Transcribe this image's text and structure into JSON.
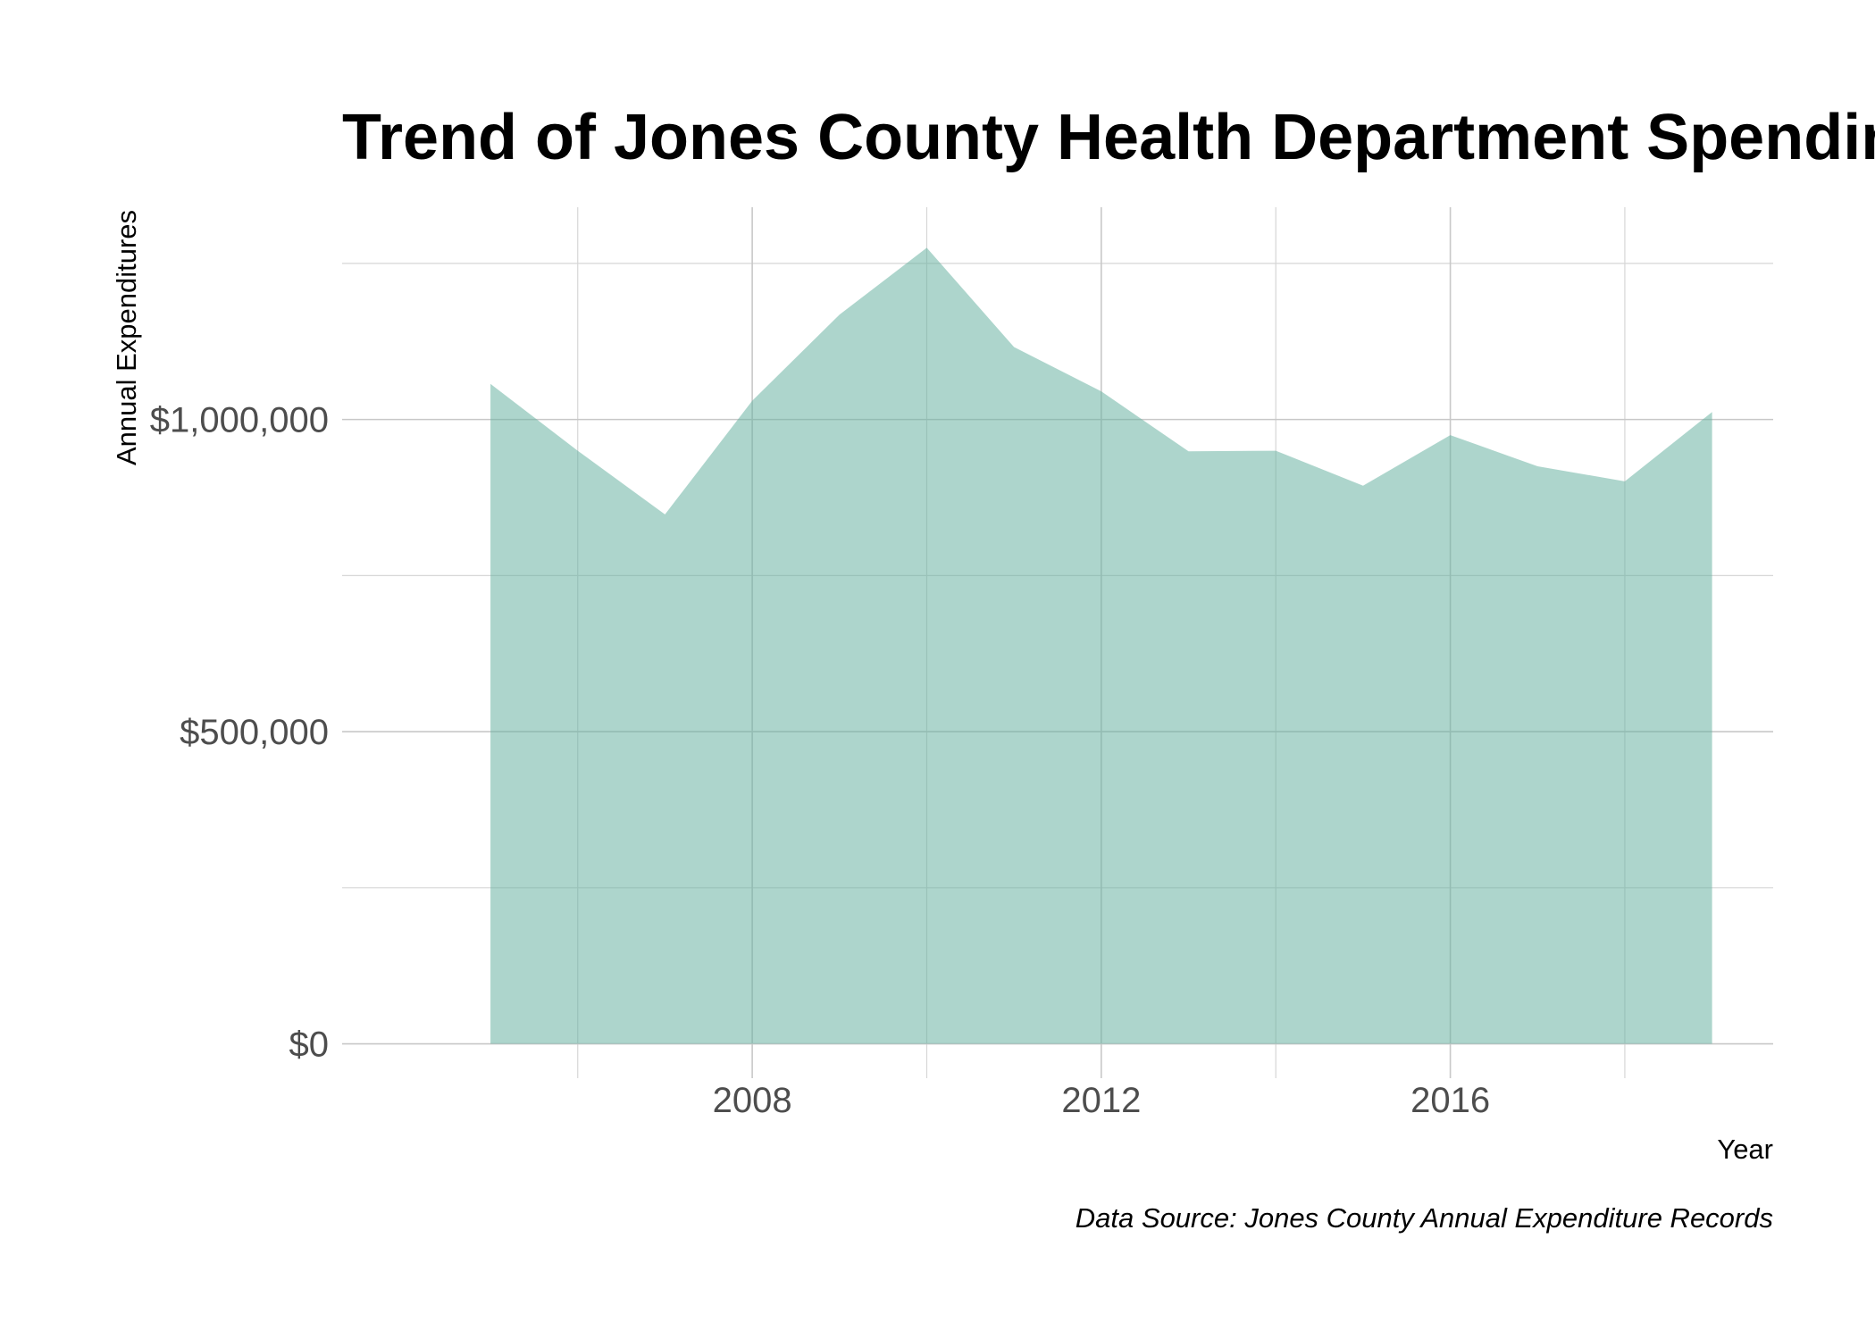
{
  "chart_data": {
    "type": "area",
    "title": "Trend of Jones County Health Department Spending",
    "xlabel": "Year",
    "ylabel": "Annual Expenditures",
    "caption": "Data Source: Jones County Annual Expenditure Records",
    "x": [
      2005,
      2006,
      2007,
      2008,
      2009,
      2010,
      2011,
      2012,
      2013,
      2014,
      2015,
      2016,
      2017,
      2018,
      2019
    ],
    "series": [
      {
        "values": [
          1057000,
          950000,
          848000,
          1030000,
          1168000,
          1275000,
          1116000,
          1045000,
          949000,
          950000,
          894000,
          975000,
          925000,
          901000,
          1012000
        ]
      }
    ],
    "xlim": [
      2003.3,
      2019.7
    ],
    "ylim": [
      -55000,
      1340000
    ],
    "x_ticks": [
      2008,
      2012,
      2016
    ],
    "x_tick_labels": [
      "2008",
      "2012",
      "2016"
    ],
    "x_minor_ticks": [
      2006,
      2010,
      2014,
      2018
    ],
    "y_ticks": [
      0,
      500000,
      1000000
    ],
    "y_tick_labels": [
      "$0",
      "$500,000",
      "$1,000,000"
    ],
    "y_minor_ticks": [
      250000,
      750000,
      1250000
    ],
    "grid": true,
    "legend": "none",
    "colors": {
      "fill": "#69b3a2",
      "fill_opacity": 0.55
    }
  }
}
